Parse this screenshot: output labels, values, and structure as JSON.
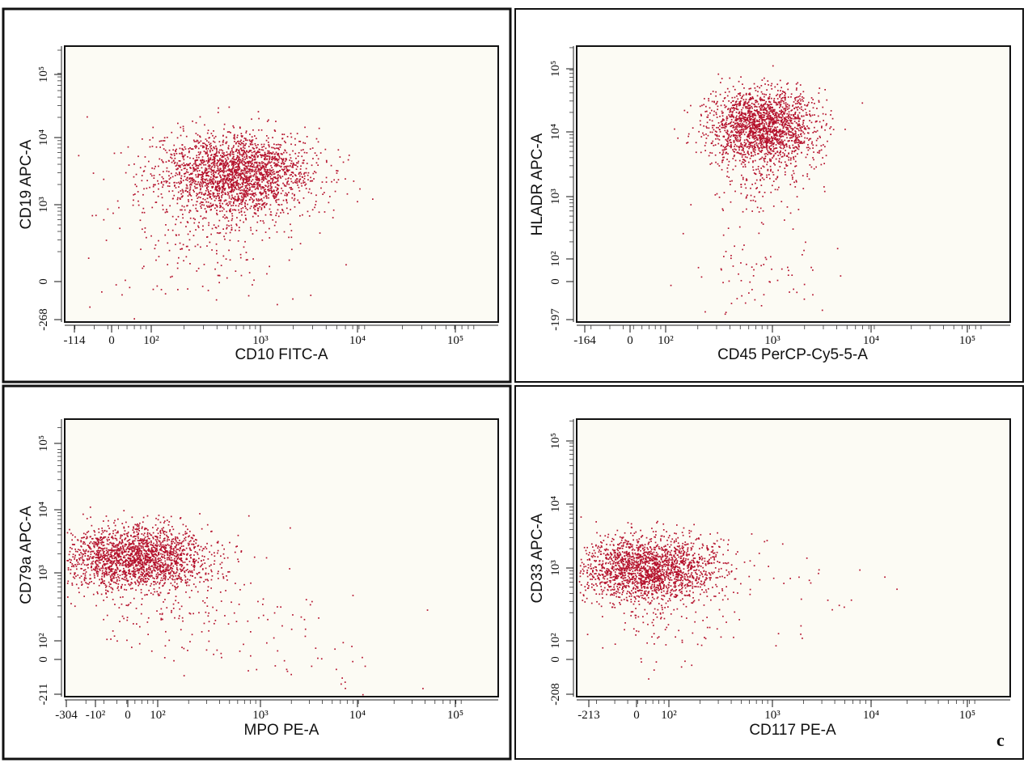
{
  "figure_label": "c",
  "colors": {
    "dots": "#b5122d",
    "plot_background": "#fcfbf4",
    "frame": "#111111"
  },
  "chart_data": [
    {
      "type": "scatter",
      "xlabel": "CD10 FITC-A",
      "ylabel": "CD19 APC-A",
      "x_axis": {
        "scale": "biexponential",
        "ticks": [
          "-114",
          "0",
          "10²",
          "10³",
          "10⁴",
          "10⁵"
        ]
      },
      "y_axis": {
        "scale": "biexponential",
        "ticks": [
          "-268",
          "0",
          "10³",
          "10⁴",
          "10⁵"
        ]
      },
      "populations": [
        {
          "center": {
            "x": 600,
            "y": 3000
          },
          "spread_decades": {
            "x": 0.35,
            "y": 0.3
          },
          "events": 2200
        },
        {
          "center": {
            "x": 400,
            "y": 800
          },
          "spread_decades": {
            "x": 0.45,
            "y": 0.45
          },
          "events": 250
        },
        {
          "center": {
            "x": 300,
            "y": 80
          },
          "spread_decades": {
            "x": 0.5,
            "y": 0.6
          },
          "events": 70
        }
      ]
    },
    {
      "type": "scatter",
      "xlabel": "CD45 PerCP-Cy5-5-A",
      "ylabel": "HLADR APC-A",
      "x_axis": {
        "scale": "biexponential",
        "ticks": [
          "-164",
          "0",
          "10²",
          "10³",
          "10⁴",
          "10⁵"
        ]
      },
      "y_axis": {
        "scale": "biexponential",
        "ticks": [
          "-197",
          "0",
          "10²",
          "10³",
          "10⁴",
          "10⁵"
        ]
      },
      "populations": [
        {
          "center": {
            "x": 800,
            "y": 12000
          },
          "spread_decades": {
            "x": 0.25,
            "y": 0.28
          },
          "events": 1900
        },
        {
          "center": {
            "x": 800,
            "y": 1500
          },
          "spread_decades": {
            "x": 0.25,
            "y": 0.3
          },
          "events": 120
        },
        {
          "center": {
            "x": 800,
            "y": 80
          },
          "spread_decades": {
            "x": 0.3,
            "y": 0.4
          },
          "events": 70
        }
      ]
    },
    {
      "type": "scatter",
      "xlabel": "MPO PE-A",
      "ylabel": "CD79a APC-A",
      "x_axis": {
        "scale": "biexponential",
        "ticks": [
          "-304",
          "-10²",
          "0",
          "10²",
          "10³",
          "10⁴",
          "10⁵"
        ]
      },
      "y_axis": {
        "scale": "biexponential",
        "ticks": [
          "-211",
          "0",
          "10²",
          "10³",
          "10⁴",
          "10⁵"
        ]
      },
      "populations": [
        {
          "center": {
            "x": 60,
            "y": 1800
          },
          "spread_decades": {
            "x": 0.35,
            "y": 0.25
          },
          "events": 2000
        },
        {
          "center": {
            "x": 150,
            "y": 300
          },
          "spread_decades": {
            "x": 0.5,
            "y": 0.45
          },
          "events": 180
        },
        {
          "center": {
            "x": 2500,
            "y": 60
          },
          "spread_decades": {
            "x": 0.45,
            "y": 0.4
          },
          "events": 45
        }
      ]
    },
    {
      "type": "scatter",
      "xlabel": "CD117 PE-A",
      "ylabel": "CD33 APC-A",
      "x_axis": {
        "scale": "biexponential",
        "ticks": [
          "-213",
          "0",
          "10²",
          "10³",
          "10⁴",
          "10⁵"
        ]
      },
      "y_axis": {
        "scale": "biexponential",
        "ticks": [
          "-208",
          "0",
          "10²",
          "10³",
          "10⁴",
          "10⁵"
        ]
      },
      "populations": [
        {
          "center": {
            "x": 60,
            "y": 1000
          },
          "spread_decades": {
            "x": 0.35,
            "y": 0.25
          },
          "events": 1900
        },
        {
          "center": {
            "x": 80,
            "y": 200
          },
          "spread_decades": {
            "x": 0.3,
            "y": 0.45
          },
          "events": 120
        },
        {
          "center": {
            "x": 1500,
            "y": 500
          },
          "spread_decades": {
            "x": 0.5,
            "y": 0.5
          },
          "events": 30
        }
      ]
    }
  ]
}
